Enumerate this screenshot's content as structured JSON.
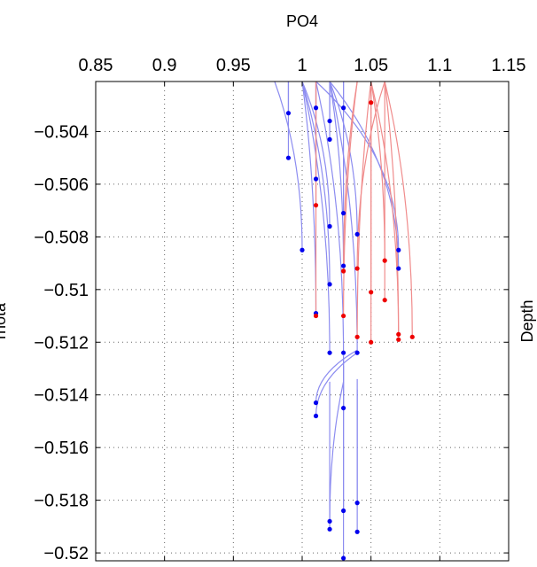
{
  "chart_data": {
    "type": "line",
    "title": "",
    "xlabel": "PO4",
    "ylabel": "rhota",
    "right_label": "Depth",
    "xlim": [
      0.85,
      1.15
    ],
    "ylim": [
      -0.5203,
      -0.5021
    ],
    "x_ticks": [
      0.85,
      0.9,
      0.95,
      1,
      1.05,
      1.1,
      1.15
    ],
    "x_tick_labels": [
      "0.85",
      "0.9",
      "0.95",
      "1",
      "1.05",
      "1.1",
      "1.15"
    ],
    "y_ticks": [
      -0.504,
      -0.506,
      -0.508,
      -0.51,
      -0.512,
      -0.514,
      -0.516,
      -0.518,
      -0.52
    ],
    "y_tick_labels": [
      "−0.504",
      "−0.506",
      "−0.508",
      "−0.51",
      "−0.512",
      "−0.514",
      "−0.516",
      "−0.518",
      "−0.52"
    ],
    "grid": true,
    "x_axis_position": "top",
    "colors": {
      "blue_series": "#8c8cf0",
      "red_series": "#f08c8c",
      "blue_points": "#0000ee",
      "red_points": "#ee0000"
    },
    "series": [
      {
        "color": "blue",
        "points": [
          [
            0.99,
            -0.5033
          ],
          [
            0.99,
            -0.5021
          ]
        ]
      },
      {
        "color": "blue",
        "points": [
          [
            0.99,
            -0.505
          ],
          [
            0.99,
            -0.5021
          ]
        ]
      },
      {
        "color": "blue",
        "points": [
          [
            1.0,
            -0.5085
          ],
          [
            0.98,
            -0.5021
          ]
        ]
      },
      {
        "color": "blue",
        "points": [
          [
            1.01,
            -0.5031
          ],
          [
            1.01,
            -0.5021
          ]
        ]
      },
      {
        "color": "blue",
        "points": [
          [
            1.02,
            -0.5036
          ],
          [
            1.02,
            -0.5021
          ]
        ]
      },
      {
        "color": "blue",
        "points": [
          [
            1.03,
            -0.5031
          ],
          [
            1.03,
            -0.5021
          ]
        ]
      },
      {
        "color": "blue",
        "points": [
          [
            1.01,
            -0.5058
          ],
          [
            1.01,
            -0.5021
          ]
        ]
      },
      {
        "color": "blue",
        "points": [
          [
            1.02,
            -0.5043
          ],
          [
            1.02,
            -0.5021
          ]
        ]
      },
      {
        "color": "blue",
        "points": [
          [
            1.02,
            -0.5076
          ],
          [
            1.0,
            -0.5021
          ]
        ]
      },
      {
        "color": "blue",
        "points": [
          [
            1.01,
            -0.5109
          ],
          [
            1.0,
            -0.5021
          ]
        ]
      },
      {
        "color": "blue",
        "points": [
          [
            1.02,
            -0.5098
          ],
          [
            1.0,
            -0.5021
          ]
        ]
      },
      {
        "color": "blue",
        "points": [
          [
            1.03,
            -0.5091
          ],
          [
            1.02,
            -0.5021
          ]
        ]
      },
      {
        "color": "blue",
        "points": [
          [
            1.04,
            -0.5079
          ],
          [
            1.02,
            -0.5021
          ]
        ]
      },
      {
        "color": "blue",
        "points": [
          [
            1.03,
            -0.5071
          ],
          [
            1.03,
            -0.5021
          ]
        ]
      },
      {
        "color": "blue",
        "points": [
          [
            1.07,
            -0.5085
          ],
          [
            1.01,
            -0.5021
          ]
        ]
      },
      {
        "color": "blue",
        "points": [
          [
            1.07,
            -0.5092
          ],
          [
            1.02,
            -0.5021
          ]
        ]
      },
      {
        "color": "blue",
        "points": [
          [
            1.02,
            -0.5124
          ],
          [
            1.0,
            -0.5021
          ]
        ]
      },
      {
        "color": "blue",
        "points": [
          [
            1.03,
            -0.5124
          ],
          [
            1.01,
            -0.5021
          ]
        ]
      },
      {
        "color": "blue",
        "points": [
          [
            1.04,
            -0.5124
          ],
          [
            1.02,
            -0.5021
          ]
        ]
      },
      {
        "color": "blue",
        "points": [
          [
            1.01,
            -0.5143
          ],
          [
            1.04,
            -0.5123
          ]
        ]
      },
      {
        "color": "blue",
        "points": [
          [
            1.01,
            -0.5148
          ],
          [
            1.04,
            -0.5124
          ]
        ]
      },
      {
        "color": "blue",
        "points": [
          [
            1.02,
            -0.5188
          ],
          [
            1.03,
            -0.5135
          ]
        ]
      },
      {
        "color": "blue",
        "points": [
          [
            1.02,
            -0.5191
          ],
          [
            1.02,
            -0.5135
          ]
        ]
      },
      {
        "color": "blue",
        "points": [
          [
            1.03,
            -0.5184
          ],
          [
            1.03,
            -0.5129
          ]
        ]
      },
      {
        "color": "blue",
        "points": [
          [
            1.03,
            -0.5202
          ],
          [
            1.03,
            -0.5126
          ]
        ]
      },
      {
        "color": "blue",
        "points": [
          [
            1.04,
            -0.5181
          ],
          [
            1.04,
            -0.5134
          ]
        ]
      },
      {
        "color": "blue",
        "points": [
          [
            1.04,
            -0.5192
          ],
          [
            1.04,
            -0.5138
          ]
        ]
      },
      {
        "color": "blue",
        "points": [
          [
            1.03,
            -0.5145
          ],
          [
            1.03,
            -0.5125
          ]
        ]
      },
      {
        "color": "red",
        "points": [
          [
            1.05,
            -0.5029
          ],
          [
            1.05,
            -0.5021
          ]
        ]
      },
      {
        "color": "red",
        "points": [
          [
            1.04,
            -0.5092
          ],
          [
            1.06,
            -0.5021
          ]
        ]
      },
      {
        "color": "red",
        "points": [
          [
            1.05,
            -0.5101
          ],
          [
            1.05,
            -0.5021
          ]
        ]
      },
      {
        "color": "red",
        "points": [
          [
            1.06,
            -0.5104
          ],
          [
            1.06,
            -0.5021
          ]
        ]
      },
      {
        "color": "red",
        "points": [
          [
            1.06,
            -0.5089
          ],
          [
            1.05,
            -0.5021
          ]
        ]
      },
      {
        "color": "red",
        "points": [
          [
            1.07,
            -0.5117
          ],
          [
            1.05,
            -0.5021
          ]
        ]
      },
      {
        "color": "red",
        "points": [
          [
            1.07,
            -0.5119
          ],
          [
            1.06,
            -0.5021
          ]
        ]
      },
      {
        "color": "red",
        "points": [
          [
            1.08,
            -0.5118
          ],
          [
            1.06,
            -0.5021
          ]
        ]
      },
      {
        "color": "red",
        "points": [
          [
            1.01,
            -0.5068
          ],
          [
            1.01,
            -0.5021
          ]
        ]
      },
      {
        "color": "red",
        "points": [
          [
            1.01,
            -0.511
          ],
          [
            1.01,
            -0.5021
          ]
        ]
      },
      {
        "color": "red",
        "points": [
          [
            1.03,
            -0.5093
          ],
          [
            1.04,
            -0.5021
          ]
        ]
      },
      {
        "color": "red",
        "points": [
          [
            1.03,
            -0.511
          ],
          [
            1.04,
            -0.5021
          ]
        ]
      },
      {
        "color": "red",
        "points": [
          [
            1.04,
            -0.5118
          ],
          [
            1.05,
            -0.5021
          ]
        ]
      },
      {
        "color": "red",
        "points": [
          [
            1.05,
            -0.512
          ],
          [
            1.05,
            -0.5021
          ]
        ]
      }
    ]
  }
}
